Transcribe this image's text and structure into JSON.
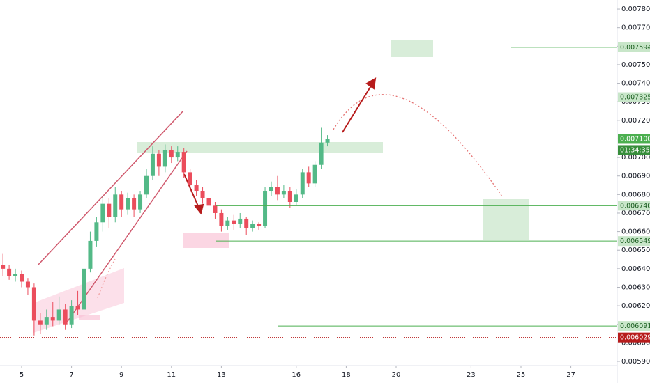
{
  "chart_data": {
    "type": "candlestick",
    "x": [
      4.25,
      4.5,
      4.75,
      5,
      5.25,
      5.5,
      5.75,
      6,
      6.25,
      6.5,
      6.75,
      7,
      7.25,
      7.5,
      7.75,
      8,
      8.25,
      8.5,
      8.75,
      9,
      9.25,
      9.5,
      9.75,
      10,
      10.25,
      10.5,
      10.75,
      11,
      11.25,
      11.5,
      11.75,
      12,
      12.25,
      12.5,
      12.75,
      13,
      13.25,
      13.5,
      13.75,
      14,
      14.25,
      14.5,
      14.75,
      15,
      15.25,
      15.5,
      15.75,
      16,
      16.25,
      16.5,
      16.75,
      17,
      17.25
    ],
    "open": [
      0.00642,
      0.0064,
      0.00636,
      0.00637,
      0.00633,
      0.0063,
      0.00612,
      0.0061,
      0.00614,
      0.00612,
      0.00618,
      0.0061,
      0.0062,
      0.00618,
      0.0064,
      0.00655,
      0.00665,
      0.00675,
      0.00668,
      0.0068,
      0.00672,
      0.00678,
      0.00672,
      0.0068,
      0.0069,
      0.00702,
      0.00695,
      0.00704,
      0.007,
      0.00703,
      0.00692,
      0.00685,
      0.00682,
      0.00678,
      0.00674,
      0.0067,
      0.00663,
      0.00666,
      0.00664,
      0.00667,
      0.00662,
      0.00664,
      0.00663,
      0.00682,
      0.00684,
      0.0068,
      0.00682,
      0.00676,
      0.0068,
      0.00692,
      0.00686,
      0.00696,
      0.00708
    ],
    "high": [
      0.00648,
      0.00642,
      0.0064,
      0.00639,
      0.00635,
      0.00632,
      0.00616,
      0.00618,
      0.00622,
      0.00625,
      0.00621,
      0.00623,
      0.00628,
      0.00643,
      0.0066,
      0.00668,
      0.00679,
      0.00678,
      0.00684,
      0.00682,
      0.00681,
      0.0068,
      0.00682,
      0.00694,
      0.00706,
      0.00704,
      0.00707,
      0.00706,
      0.00706,
      0.00705,
      0.00694,
      0.00688,
      0.00684,
      0.0068,
      0.00676,
      0.00672,
      0.00668,
      0.00669,
      0.0067,
      0.00668,
      0.00666,
      0.00665,
      0.00684,
      0.00687,
      0.0069,
      0.00685,
      0.00684,
      0.00683,
      0.00694,
      0.00695,
      0.00698,
      0.00716,
      0.00712
    ],
    "low": [
      0.00636,
      0.00634,
      0.00633,
      0.0063,
      0.00626,
      0.00604,
      0.00605,
      0.00607,
      0.00609,
      0.0061,
      0.00607,
      0.00608,
      0.00615,
      0.00616,
      0.00638,
      0.00652,
      0.0066,
      0.00662,
      0.00665,
      0.00668,
      0.00669,
      0.00668,
      0.0067,
      0.00678,
      0.00688,
      0.0069,
      0.00692,
      0.00697,
      0.00698,
      0.00689,
      0.00682,
      0.00679,
      0.00675,
      0.00671,
      0.00667,
      0.0066,
      0.00661,
      0.00661,
      0.00662,
      0.00658,
      0.0066,
      0.00661,
      0.00662,
      0.00679,
      0.00677,
      0.00678,
      0.00673,
      0.00674,
      0.00678,
      0.00684,
      0.00684,
      0.00694,
      0.00706
    ],
    "close": [
      0.0064,
      0.00636,
      0.00637,
      0.00633,
      0.0063,
      0.00612,
      0.0061,
      0.00614,
      0.00612,
      0.00618,
      0.0061,
      0.0062,
      0.00618,
      0.0064,
      0.00655,
      0.00665,
      0.00675,
      0.00668,
      0.0068,
      0.00672,
      0.00678,
      0.00672,
      0.0068,
      0.0069,
      0.00702,
      0.00695,
      0.00704,
      0.007,
      0.00703,
      0.00692,
      0.00685,
      0.00682,
      0.00678,
      0.00674,
      0.0067,
      0.00663,
      0.00666,
      0.00664,
      0.00667,
      0.00662,
      0.00664,
      0.00663,
      0.00682,
      0.00684,
      0.0068,
      0.00682,
      0.00676,
      0.0068,
      0.00692,
      0.00686,
      0.00696,
      0.00708,
      0.0071
    ],
    "up_color": "#53b987",
    "down_color": "#eb4d5c",
    "xlim": [
      4.134,
      28.855
    ],
    "xticks": [
      5,
      7,
      9,
      11,
      13,
      16,
      18,
      20,
      23,
      25,
      27
    ],
    "ylim": [
      0.005885,
      0.007849
    ],
    "yticks": [
      {
        "value": 0.0078,
        "label": "0.007800"
      },
      {
        "value": 0.0077,
        "label": "0.007700"
      },
      {
        "value": 0.0076,
        "label": "0.007600"
      },
      {
        "value": 0.0075,
        "label": "0.007500"
      },
      {
        "value": 0.0074,
        "label": "0.007400"
      },
      {
        "value": 0.0073,
        "label": "0.007300"
      },
      {
        "value": 0.0072,
        "label": "0.007200"
      },
      {
        "value": 0.0071,
        "label": "0.007100"
      },
      {
        "value": 0.007,
        "label": "0.007000"
      },
      {
        "value": 0.0069,
        "label": "0.006900"
      },
      {
        "value": 0.0068,
        "label": "0.006800"
      },
      {
        "value": 0.0067,
        "label": "0.006700"
      },
      {
        "value": 0.0066,
        "label": "0.006600"
      },
      {
        "value": 0.0065,
        "label": "0.006500"
      },
      {
        "value": 0.0064,
        "label": "0.006400"
      },
      {
        "value": 0.0063,
        "label": "0.006300"
      },
      {
        "value": 0.0062,
        "label": "0.006200"
      },
      {
        "value": 0.0061,
        "label": "0.006100"
      },
      {
        "value": 0.006,
        "label": "0.006000"
      },
      {
        "value": 0.0059,
        "label": "0.005900"
      }
    ],
    "levels": [
      {
        "value": 0.007594,
        "label": "0.007594",
        "color": "#4caf50",
        "style": "solid"
      },
      {
        "value": 0.007325,
        "label": "0.007325",
        "color": "#4caf50",
        "style": "solid"
      },
      {
        "value": 0.0071,
        "label": "0.007100",
        "color": "#4caf50",
        "style": "dotted"
      },
      {
        "value": 0.00674,
        "label": "0.006740",
        "color": "#4caf50",
        "style": "solid"
      },
      {
        "value": 0.006549,
        "label": "0.006549",
        "color": "#4caf50",
        "style": "solid"
      },
      {
        "value": 0.006091,
        "label": "0.006091",
        "color": "#4caf50",
        "style": "solid"
      },
      {
        "value": 0.006029,
        "label": "0.006029",
        "color": "#b71c1c",
        "style": "dotted"
      }
    ],
    "countdown": "01:34:35"
  }
}
